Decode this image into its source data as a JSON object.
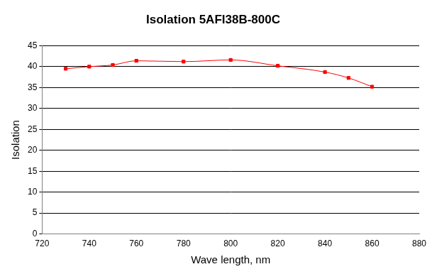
{
  "chart_data": {
    "type": "line",
    "title": "Isolation 5AFI38B-800C",
    "x_label": "Wave length, nm",
    "y_label": "Isolation",
    "x": [
      730,
      740,
      750,
      760,
      780,
      800,
      820,
      840,
      850,
      860
    ],
    "values": [
      39.5,
      40.0,
      40.4,
      41.4,
      41.2,
      41.6,
      40.2,
      38.7,
      37.3,
      35.2
    ],
    "color": "#ff0000",
    "marker": "square",
    "line_style": "smooth",
    "xlim": [
      720,
      880
    ],
    "xticks": [
      720,
      740,
      760,
      780,
      800,
      820,
      840,
      860,
      880
    ],
    "ylim": [
      0,
      45
    ],
    "yticks": [
      0,
      5,
      10,
      15,
      20,
      25,
      30,
      35,
      40,
      45
    ],
    "grid": "y"
  }
}
